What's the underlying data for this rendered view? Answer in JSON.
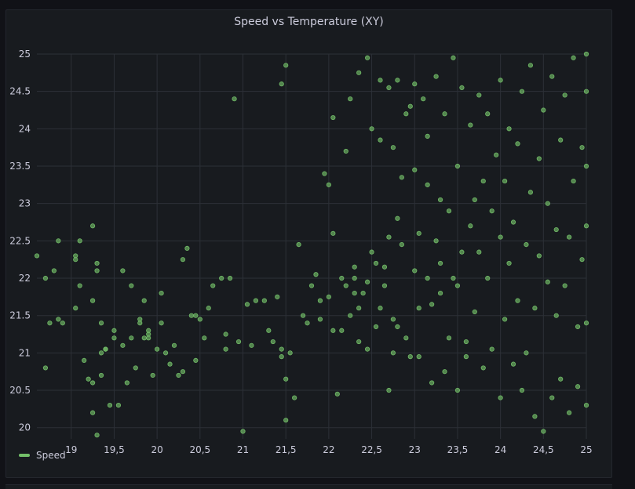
{
  "panel": {
    "title": "Speed vs Temperature (XY)"
  },
  "colors": {
    "background": "#111217",
    "panel": "#181b1f",
    "grid": "#2c3037",
    "text": "#ccccdc",
    "series": "#73bf69"
  },
  "chart_data": {
    "type": "scatter",
    "title": "Speed vs Temperature (XY)",
    "xlabel": "",
    "ylabel": "",
    "xlim": [
      18.6,
      25
    ],
    "ylim": [
      19.85,
      25
    ],
    "x_ticks": [
      "19",
      "19,5",
      "20",
      "20,5",
      "21",
      "21,5",
      "22",
      "22,5",
      "23",
      "23,5",
      "24",
      "24,5",
      "25"
    ],
    "x_tick_values": [
      19,
      19.5,
      20,
      20.5,
      21,
      21.5,
      22,
      22.5,
      23,
      23.5,
      24,
      24.5,
      25
    ],
    "y_ticks": [
      "20",
      "20.5",
      "21",
      "21.5",
      "22",
      "22.5",
      "23",
      "23.5",
      "24",
      "24.5",
      "25"
    ],
    "y_tick_values": [
      20,
      20.5,
      21,
      21.5,
      22,
      22.5,
      23,
      23.5,
      24,
      24.5,
      25
    ],
    "grid": true,
    "legend_position": "bottom-left",
    "series": [
      {
        "name": "Speed",
        "color": "#73bf69",
        "points": [
          [
            18.6,
            22.3
          ],
          [
            18.7,
            20.8
          ],
          [
            18.7,
            22.0
          ],
          [
            18.75,
            21.4
          ],
          [
            18.8,
            22.1
          ],
          [
            18.85,
            21.45
          ],
          [
            18.85,
            22.5
          ],
          [
            18.9,
            21.4
          ],
          [
            19.05,
            22.3
          ],
          [
            19.05,
            22.25
          ],
          [
            19.05,
            21.6
          ],
          [
            19.1,
            21.9
          ],
          [
            19.1,
            22.5
          ],
          [
            19.15,
            20.9
          ],
          [
            19.2,
            20.65
          ],
          [
            19.25,
            21.7
          ],
          [
            19.25,
            20.6
          ],
          [
            19.25,
            20.2
          ],
          [
            19.25,
            22.7
          ],
          [
            19.3,
            22.1
          ],
          [
            19.3,
            22.2
          ],
          [
            19.3,
            19.9
          ],
          [
            19.35,
            21.4
          ],
          [
            19.35,
            20.7
          ],
          [
            19.35,
            21.0
          ],
          [
            19.4,
            21.05
          ],
          [
            19.4,
            21.05
          ],
          [
            19.45,
            20.3
          ],
          [
            19.5,
            21.2
          ],
          [
            19.5,
            21.3
          ],
          [
            19.55,
            20.3
          ],
          [
            19.6,
            21.1
          ],
          [
            19.6,
            22.1
          ],
          [
            19.65,
            20.6
          ],
          [
            19.7,
            21.9
          ],
          [
            19.7,
            21.2
          ],
          [
            19.75,
            20.8
          ],
          [
            19.8,
            21.4
          ],
          [
            19.8,
            21.45
          ],
          [
            19.85,
            21.7
          ],
          [
            19.85,
            21.2
          ],
          [
            19.9,
            21.25
          ],
          [
            19.9,
            21.2
          ],
          [
            19.9,
            21.3
          ],
          [
            19.95,
            20.7
          ],
          [
            20.0,
            21.05
          ],
          [
            20.05,
            21.8
          ],
          [
            20.05,
            21.4
          ],
          [
            20.1,
            21.0
          ],
          [
            20.15,
            20.85
          ],
          [
            20.2,
            21.1
          ],
          [
            20.25,
            20.7
          ],
          [
            20.3,
            20.75
          ],
          [
            20.3,
            22.25
          ],
          [
            20.35,
            22.4
          ],
          [
            20.4,
            21.5
          ],
          [
            20.45,
            20.9
          ],
          [
            20.45,
            21.5
          ],
          [
            20.5,
            21.45
          ],
          [
            20.55,
            21.2
          ],
          [
            20.6,
            21.6
          ],
          [
            20.65,
            21.9
          ],
          [
            20.75,
            22.0
          ],
          [
            20.8,
            21.05
          ],
          [
            20.8,
            21.25
          ],
          [
            20.85,
            22.0
          ],
          [
            20.9,
            24.4
          ],
          [
            20.95,
            21.15
          ],
          [
            21.0,
            19.95
          ],
          [
            21.05,
            21.65
          ],
          [
            21.1,
            21.1
          ],
          [
            21.15,
            21.7
          ],
          [
            21.25,
            21.7
          ],
          [
            21.3,
            21.3
          ],
          [
            21.35,
            21.15
          ],
          [
            21.4,
            21.75
          ],
          [
            21.45,
            21.05
          ],
          [
            21.45,
            20.95
          ],
          [
            21.45,
            24.6
          ],
          [
            21.5,
            20.1
          ],
          [
            21.5,
            20.65
          ],
          [
            21.5,
            24.85
          ],
          [
            21.55,
            21.0
          ],
          [
            21.6,
            20.4
          ],
          [
            21.65,
            22.45
          ],
          [
            21.7,
            21.5
          ],
          [
            21.75,
            21.4
          ],
          [
            21.8,
            21.9
          ],
          [
            21.85,
            22.05
          ],
          [
            21.9,
            21.45
          ],
          [
            21.9,
            21.7
          ],
          [
            21.95,
            23.4
          ],
          [
            22.0,
            21.75
          ],
          [
            22.0,
            23.25
          ],
          [
            22.05,
            22.6
          ],
          [
            22.05,
            24.15
          ],
          [
            22.05,
            21.3
          ],
          [
            22.1,
            20.45
          ],
          [
            22.15,
            21.3
          ],
          [
            22.15,
            22.0
          ],
          [
            22.2,
            21.9
          ],
          [
            22.2,
            23.7
          ],
          [
            22.25,
            24.4
          ],
          [
            22.25,
            21.5
          ],
          [
            22.3,
            21.8
          ],
          [
            22.3,
            22.0
          ],
          [
            22.3,
            22.15
          ],
          [
            22.35,
            21.15
          ],
          [
            22.35,
            21.6
          ],
          [
            22.35,
            24.75
          ],
          [
            22.4,
            21.8
          ],
          [
            22.45,
            21.05
          ],
          [
            22.45,
            21.95
          ],
          [
            22.45,
            24.95
          ],
          [
            22.5,
            22.35
          ],
          [
            22.5,
            24.0
          ],
          [
            22.55,
            21.35
          ],
          [
            22.55,
            22.2
          ],
          [
            22.6,
            23.85
          ],
          [
            22.6,
            21.6
          ],
          [
            22.6,
            24.65
          ],
          [
            22.65,
            22.15
          ],
          [
            22.65,
            21.9
          ],
          [
            22.7,
            22.55
          ],
          [
            22.7,
            20.5
          ],
          [
            22.7,
            24.55
          ],
          [
            22.75,
            21.0
          ],
          [
            22.75,
            21.45
          ],
          [
            22.75,
            23.75
          ],
          [
            22.8,
            22.8
          ],
          [
            22.8,
            21.35
          ],
          [
            22.8,
            24.65
          ],
          [
            22.85,
            22.45
          ],
          [
            22.85,
            23.35
          ],
          [
            22.9,
            24.2
          ],
          [
            22.9,
            21.2
          ],
          [
            22.95,
            20.95
          ],
          [
            22.95,
            24.3
          ],
          [
            23.0,
            22.1
          ],
          [
            23.0,
            23.45
          ],
          [
            23.0,
            24.6
          ],
          [
            23.05,
            22.6
          ],
          [
            23.05,
            21.6
          ],
          [
            23.05,
            20.95
          ],
          [
            23.1,
            24.4
          ],
          [
            23.15,
            22.0
          ],
          [
            23.15,
            23.25
          ],
          [
            23.15,
            23.9
          ],
          [
            23.2,
            21.65
          ],
          [
            23.2,
            20.6
          ],
          [
            23.25,
            22.5
          ],
          [
            23.25,
            24.7
          ],
          [
            23.3,
            21.8
          ],
          [
            23.3,
            22.2
          ],
          [
            23.3,
            23.05
          ],
          [
            23.35,
            20.75
          ],
          [
            23.35,
            24.2
          ],
          [
            23.4,
            21.2
          ],
          [
            23.4,
            22.9
          ],
          [
            23.45,
            22.0
          ],
          [
            23.45,
            24.95
          ],
          [
            23.5,
            20.5
          ],
          [
            23.5,
            21.9
          ],
          [
            23.5,
            23.5
          ],
          [
            23.55,
            24.55
          ],
          [
            23.55,
            22.35
          ],
          [
            23.6,
            21.15
          ],
          [
            23.6,
            20.95
          ],
          [
            23.65,
            22.7
          ],
          [
            23.65,
            24.05
          ],
          [
            23.7,
            23.05
          ],
          [
            23.7,
            21.55
          ],
          [
            23.75,
            22.35
          ],
          [
            23.75,
            24.45
          ],
          [
            23.8,
            20.8
          ],
          [
            23.8,
            23.3
          ],
          [
            23.85,
            22.0
          ],
          [
            23.85,
            24.2
          ],
          [
            23.9,
            21.05
          ],
          [
            23.9,
            22.9
          ],
          [
            23.95,
            23.65
          ],
          [
            24.0,
            20.4
          ],
          [
            24.0,
            22.55
          ],
          [
            24.0,
            24.65
          ],
          [
            24.05,
            21.45
          ],
          [
            24.05,
            23.3
          ],
          [
            24.1,
            22.2
          ],
          [
            24.1,
            24.0
          ],
          [
            24.15,
            20.85
          ],
          [
            24.15,
            22.75
          ],
          [
            24.2,
            21.7
          ],
          [
            24.2,
            23.8
          ],
          [
            24.25,
            20.5
          ],
          [
            24.25,
            24.5
          ],
          [
            24.3,
            22.45
          ],
          [
            24.3,
            21.0
          ],
          [
            24.35,
            23.15
          ],
          [
            24.35,
            24.85
          ],
          [
            24.4,
            20.15
          ],
          [
            24.4,
            21.6
          ],
          [
            24.45,
            23.6
          ],
          [
            24.45,
            22.3
          ],
          [
            24.5,
            19.95
          ],
          [
            24.5,
            24.25
          ],
          [
            24.55,
            21.95
          ],
          [
            24.55,
            23.0
          ],
          [
            24.6,
            20.4
          ],
          [
            24.6,
            24.7
          ],
          [
            24.65,
            21.5
          ],
          [
            24.65,
            22.65
          ],
          [
            24.7,
            20.65
          ],
          [
            24.7,
            23.85
          ],
          [
            24.75,
            21.9
          ],
          [
            24.75,
            24.45
          ],
          [
            24.8,
            20.2
          ],
          [
            24.8,
            22.55
          ],
          [
            24.85,
            23.3
          ],
          [
            24.85,
            24.95
          ],
          [
            24.9,
            21.35
          ],
          [
            24.9,
            20.55
          ],
          [
            24.95,
            22.25
          ],
          [
            24.95,
            23.75
          ],
          [
            25.0,
            20.3
          ],
          [
            25.0,
            21.4
          ],
          [
            25.0,
            22.7
          ],
          [
            25.0,
            23.5
          ],
          [
            25.0,
            24.5
          ],
          [
            25.0,
            25.0
          ]
        ]
      }
    ]
  },
  "legend": {
    "label": "Speed"
  }
}
